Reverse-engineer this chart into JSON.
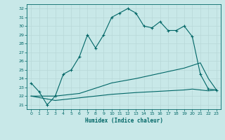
{
  "title": "",
  "xlabel": "Humidex (Indice chaleur)",
  "bg_color": "#c8e8e8",
  "grid_color": "#b8d8d8",
  "line_color": "#006666",
  "xlim": [
    -0.5,
    23.5
  ],
  "ylim": [
    20.5,
    32.5
  ],
  "yticks": [
    21,
    22,
    23,
    24,
    25,
    26,
    27,
    28,
    29,
    30,
    31,
    32
  ],
  "xticks": [
    0,
    1,
    2,
    3,
    4,
    5,
    6,
    7,
    8,
    9,
    10,
    11,
    12,
    13,
    14,
    15,
    16,
    17,
    18,
    19,
    20,
    21,
    22,
    23
  ],
  "series_main": {
    "x": [
      0,
      1,
      2,
      3,
      4,
      5,
      6,
      7,
      8,
      9,
      10,
      11,
      12,
      13,
      14,
      15,
      16,
      17,
      18,
      19,
      20,
      21,
      22,
      23
    ],
    "y": [
      23.5,
      22.5,
      21.0,
      22.0,
      24.5,
      25.0,
      26.5,
      29.0,
      27.5,
      29.0,
      31.0,
      31.5,
      32.0,
      31.5,
      30.0,
      29.8,
      30.5,
      29.5,
      29.5,
      30.0,
      28.8,
      24.5,
      22.8,
      22.7
    ]
  },
  "series_upper": {
    "x": [
      0,
      3,
      6,
      10,
      13,
      17,
      19,
      20,
      21,
      22,
      23
    ],
    "y": [
      22.0,
      22.0,
      22.3,
      23.5,
      24.0,
      24.8,
      25.2,
      25.5,
      25.8,
      24.0,
      22.7
    ]
  },
  "series_lower": {
    "x": [
      0,
      3,
      6,
      10,
      13,
      17,
      19,
      20,
      21,
      22,
      23
    ],
    "y": [
      22.0,
      21.5,
      21.8,
      22.2,
      22.4,
      22.6,
      22.7,
      22.8,
      22.7,
      22.6,
      22.7
    ]
  }
}
